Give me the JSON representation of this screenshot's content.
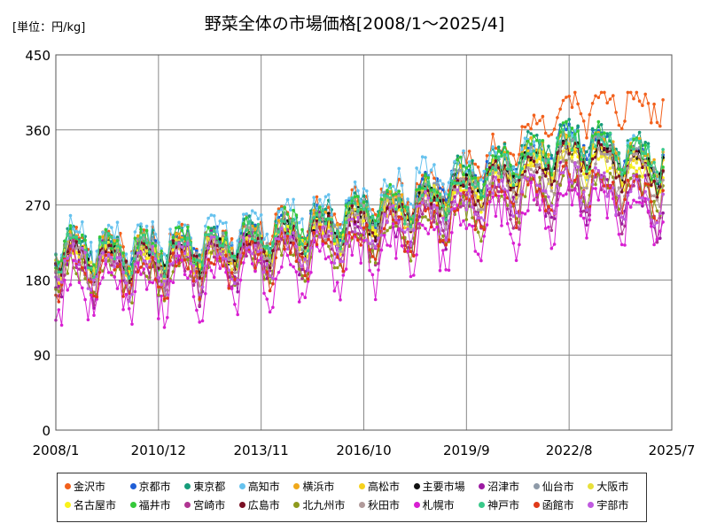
{
  "unit_label": "[単位：円/kg]",
  "chart_data": {
    "type": "line",
    "title": "野菜全体の市場価格[2008/1～2025/4]",
    "xlabel": "",
    "ylabel": "",
    "ylim": [
      0,
      450
    ],
    "yticks": [
      0,
      90,
      180,
      270,
      360,
      450
    ],
    "xlim": [
      "2008/1",
      "2025/7"
    ],
    "xticks": [
      "2008/1",
      "2010/12",
      "2013/11",
      "2016/10",
      "2019/9",
      "2022/8",
      "2025/7"
    ],
    "grid": true,
    "legend_position": "bottom",
    "x_start": "2008/1",
    "x_end": "2025/4",
    "series": [
      {
        "name": "金沢市",
        "color": "#f2601c",
        "base": [
          225,
          222,
          232,
          255,
          285,
          330,
          385,
          395
        ],
        "amp": 26
      },
      {
        "name": "京都市",
        "color": "#1f5ed6",
        "base": [
          218,
          215,
          225,
          248,
          275,
          315,
          355,
          320
        ],
        "amp": 25
      },
      {
        "name": "東京都",
        "color": "#169c7a",
        "base": [
          220,
          218,
          228,
          250,
          278,
          318,
          355,
          330
        ],
        "amp": 27
      },
      {
        "name": "高知市",
        "color": "#66c2ee",
        "base": [
          230,
          226,
          238,
          260,
          292,
          322,
          340,
          320
        ],
        "amp": 30
      },
      {
        "name": "横浜市",
        "color": "#f0a81a",
        "base": [
          215,
          212,
          222,
          244,
          270,
          310,
          345,
          325
        ],
        "amp": 25
      },
      {
        "name": "高松市",
        "color": "#f6d11c",
        "base": [
          210,
          206,
          216,
          238,
          264,
          300,
          335,
          310
        ],
        "amp": 24
      },
      {
        "name": "主要市場",
        "color": "#111111",
        "base": [
          212,
          208,
          218,
          240,
          266,
          304,
          335,
          315
        ],
        "amp": 22
      },
      {
        "name": "沼津市",
        "color": "#9c1aa2",
        "base": [
          200,
          196,
          205,
          225,
          245,
          278,
          300,
          270
        ],
        "amp": 38
      },
      {
        "name": "仙台市",
        "color": "#8e9aa8",
        "base": [
          215,
          212,
          222,
          244,
          270,
          306,
          340,
          315
        ],
        "amp": 25
      },
      {
        "name": "大阪市",
        "color": "#e8e03a",
        "base": [
          208,
          205,
          214,
          236,
          262,
          298,
          330,
          305
        ],
        "amp": 23
      },
      {
        "name": "名古屋市",
        "color": "#f9f21a",
        "base": [
          205,
          202,
          212,
          234,
          258,
          294,
          325,
          300
        ],
        "amp": 22
      },
      {
        "name": "福井市",
        "color": "#35c93a",
        "base": [
          220,
          216,
          226,
          248,
          276,
          314,
          350,
          320
        ],
        "amp": 28
      },
      {
        "name": "宮崎市",
        "color": "#b03592",
        "base": [
          195,
          192,
          200,
          218,
          240,
          270,
          290,
          265
        ],
        "amp": 35
      },
      {
        "name": "広島市",
        "color": "#7a0f24",
        "base": [
          210,
          206,
          215,
          236,
          262,
          298,
          330,
          305
        ],
        "amp": 23
      },
      {
        "name": "北九州市",
        "color": "#8e9a1e",
        "base": [
          188,
          185,
          194,
          212,
          236,
          268,
          300,
          280
        ],
        "amp": 28
      },
      {
        "name": "秋田市",
        "color": "#b09a9a",
        "base": [
          205,
          202,
          212,
          232,
          258,
          292,
          320,
          300
        ],
        "amp": 30
      },
      {
        "name": "札幌市",
        "color": "#d81fd2",
        "base": [
          170,
          168,
          178,
          196,
          218,
          246,
          270,
          255
        ],
        "amp": 40
      },
      {
        "name": "神戸市",
        "color": "#39c98a",
        "base": [
          215,
          212,
          222,
          244,
          270,
          306,
          345,
          325
        ],
        "amp": 25
      },
      {
        "name": "函館市",
        "color": "#e03a1a",
        "base": [
          190,
          188,
          198,
          216,
          240,
          272,
          300,
          280
        ],
        "amp": 30
      },
      {
        "name": "宇部市",
        "color": "#c05ae0",
        "base": [
          198,
          195,
          205,
          224,
          248,
          280,
          300,
          270
        ],
        "amp": 30
      }
    ]
  }
}
